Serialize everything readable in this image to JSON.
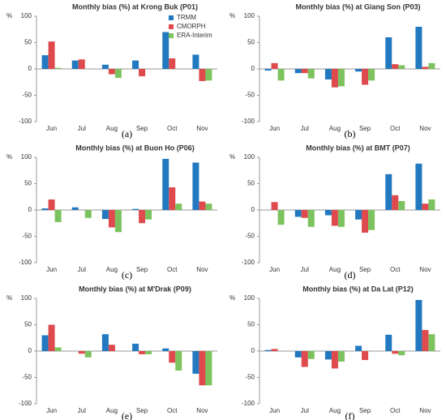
{
  "chart_data": [
    {
      "type": "bar",
      "title": "Monthly bias (%) at Krong Buk (P01)",
      "caption": "(a)",
      "ylabel": "%",
      "legend": "top-right",
      "categories": [
        "Jun",
        "Jul",
        "Aug",
        "Sep",
        "Oct",
        "Nov"
      ],
      "ylim": [
        -100,
        100
      ],
      "yticks": [
        -100,
        -50,
        0,
        50,
        100
      ],
      "series": [
        {
          "name": "TRMM",
          "color": "#2279c0",
          "values": [
            26,
            16,
            8,
            16,
            70,
            27
          ]
        },
        {
          "name": "CMORPH",
          "color": "#de4a4d",
          "values": [
            52,
            18,
            -10,
            -14,
            20,
            -23
          ]
        },
        {
          "name": "ERA-Interim",
          "color": "#7cc35f",
          "values": [
            2,
            0,
            -17,
            0,
            0,
            -22
          ]
        }
      ]
    },
    {
      "type": "bar",
      "title": "Monthly bias (%) at Giang Son (P03)",
      "caption": "(b)",
      "ylabel": "%",
      "categories": [
        "Jun",
        "Jul",
        "Aug",
        "Sep",
        "Oct",
        "Nov"
      ],
      "ylim": [
        -100,
        100
      ],
      "yticks": [
        -100,
        -50,
        0,
        50,
        100
      ],
      "series": [
        {
          "color": "#2279c0",
          "values": [
            -3,
            -8,
            -20,
            -5,
            60,
            80
          ]
        },
        {
          "color": "#de4a4d",
          "values": [
            11,
            -8,
            -35,
            -30,
            9,
            4
          ]
        },
        {
          "color": "#7cc35f",
          "values": [
            -22,
            -18,
            -33,
            -22,
            7,
            11
          ]
        }
      ]
    },
    {
      "type": "bar",
      "title": "Monthly bias (%) at Buon Ho (P06)",
      "caption": "(c)",
      "ylabel": "%",
      "categories": [
        "Jun",
        "Jul",
        "Aug",
        "Sep",
        "Oct",
        "Nov"
      ],
      "ylim": [
        -100,
        100
      ],
      "yticks": [
        -100,
        -50,
        0,
        50,
        100
      ],
      "series": [
        {
          "color": "#2279c0",
          "values": [
            3,
            5,
            -17,
            2,
            97,
            90
          ]
        },
        {
          "color": "#de4a4d",
          "values": [
            20,
            0,
            -33,
            -25,
            43,
            16
          ]
        },
        {
          "color": "#7cc35f",
          "values": [
            -23,
            -15,
            -42,
            -18,
            12,
            12
          ]
        }
      ]
    },
    {
      "type": "bar",
      "title": "Monthly bias (%) at BMT (P07)",
      "caption": "(d)",
      "ylabel": "%",
      "categories": [
        "Jun",
        "Jul",
        "Aug",
        "Sep",
        "Oct",
        "Nov"
      ],
      "ylim": [
        -100,
        100
      ],
      "yticks": [
        -100,
        -50,
        0,
        50,
        100
      ],
      "series": [
        {
          "color": "#2279c0",
          "values": [
            0,
            -13,
            -10,
            -18,
            68,
            88
          ]
        },
        {
          "color": "#de4a4d",
          "values": [
            15,
            -15,
            -30,
            -43,
            28,
            12
          ]
        },
        {
          "color": "#7cc35f",
          "values": [
            -28,
            -32,
            -32,
            -38,
            17,
            20
          ]
        }
      ]
    },
    {
      "type": "bar",
      "title": "Monthly bias (%) at M'Drak (P09)",
      "caption": "(e)",
      "ylabel": "%",
      "categories": [
        "Jun",
        "Jul",
        "Aug",
        "Sep",
        "Oct",
        "Nov"
      ],
      "ylim": [
        -100,
        100
      ],
      "yticks": [
        -100,
        -50,
        0,
        50,
        100
      ],
      "series": [
        {
          "color": "#2279c0",
          "values": [
            30,
            0,
            32,
            14,
            5,
            -43
          ]
        },
        {
          "color": "#de4a4d",
          "values": [
            50,
            -5,
            12,
            -6,
            -22,
            -65
          ]
        },
        {
          "color": "#7cc35f",
          "values": [
            7,
            -12,
            0,
            -6,
            -37,
            -65
          ]
        }
      ]
    },
    {
      "type": "bar",
      "title": "Monthly bias (%) at Da Lat (P12)",
      "caption": "(f)",
      "ylabel": "%",
      "categories": [
        "Jun",
        "Jul",
        "Aug",
        "Sep",
        "Oct",
        "Nov"
      ],
      "ylim": [
        -100,
        100
      ],
      "yticks": [
        -100,
        -50,
        0,
        50,
        100
      ],
      "series": [
        {
          "color": "#2279c0",
          "values": [
            2,
            -12,
            -16,
            10,
            31,
            97
          ]
        },
        {
          "color": "#de4a4d",
          "values": [
            4,
            -30,
            -33,
            -17,
            -5,
            40
          ]
        },
        {
          "color": "#7cc35f",
          "values": [
            0,
            -15,
            -20,
            0,
            -8,
            32
          ]
        }
      ]
    }
  ]
}
